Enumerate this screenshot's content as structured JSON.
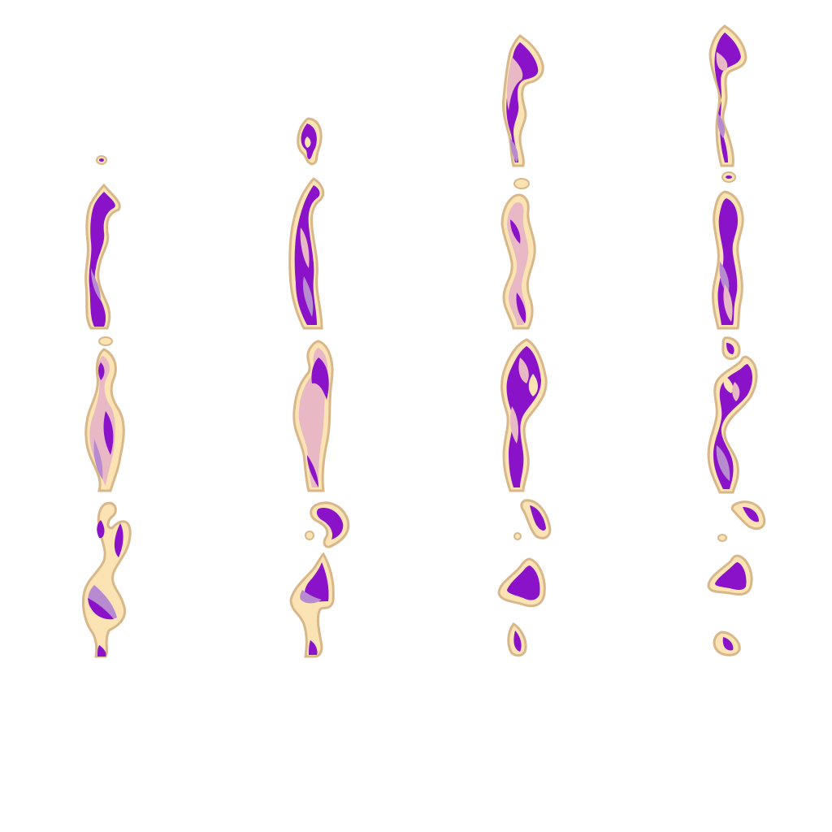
{
  "sprite_sheet": {
    "background": "#ffffff",
    "columns": 4,
    "rows": 4,
    "palette": {
      "outline": "#d8b88a",
      "rim": "#fbe3b4",
      "fill_light": "#e8b8c4",
      "fill_mid": "#b88ad0",
      "fill_dark": "#8a12c8"
    },
    "frames": [
      {
        "column": 1,
        "row": 1,
        "description": "purple-flame-sprite"
      },
      {
        "column": 1,
        "row": 2,
        "description": "purple-flame-sprite"
      },
      {
        "column": 1,
        "row": 3,
        "description": "purple-flame-sprite"
      },
      {
        "column": 2,
        "row": 1,
        "description": "purple-flame-sprite"
      },
      {
        "column": 2,
        "row": 2,
        "description": "purple-flame-sprite"
      },
      {
        "column": 2,
        "row": 3,
        "description": "purple-flame-sprite"
      },
      {
        "column": 3,
        "row": 1,
        "description": "purple-flame-sprite"
      },
      {
        "column": 3,
        "row": 2,
        "description": "purple-flame-sprite"
      },
      {
        "column": 3,
        "row": 3,
        "description": "purple-flame-sprite"
      },
      {
        "column": 4,
        "row": 1,
        "description": "purple-flame-sprite"
      },
      {
        "column": 4,
        "row": 2,
        "description": "purple-flame-sprite"
      },
      {
        "column": 4,
        "row": 3,
        "description": "purple-flame-sprite"
      }
    ]
  }
}
